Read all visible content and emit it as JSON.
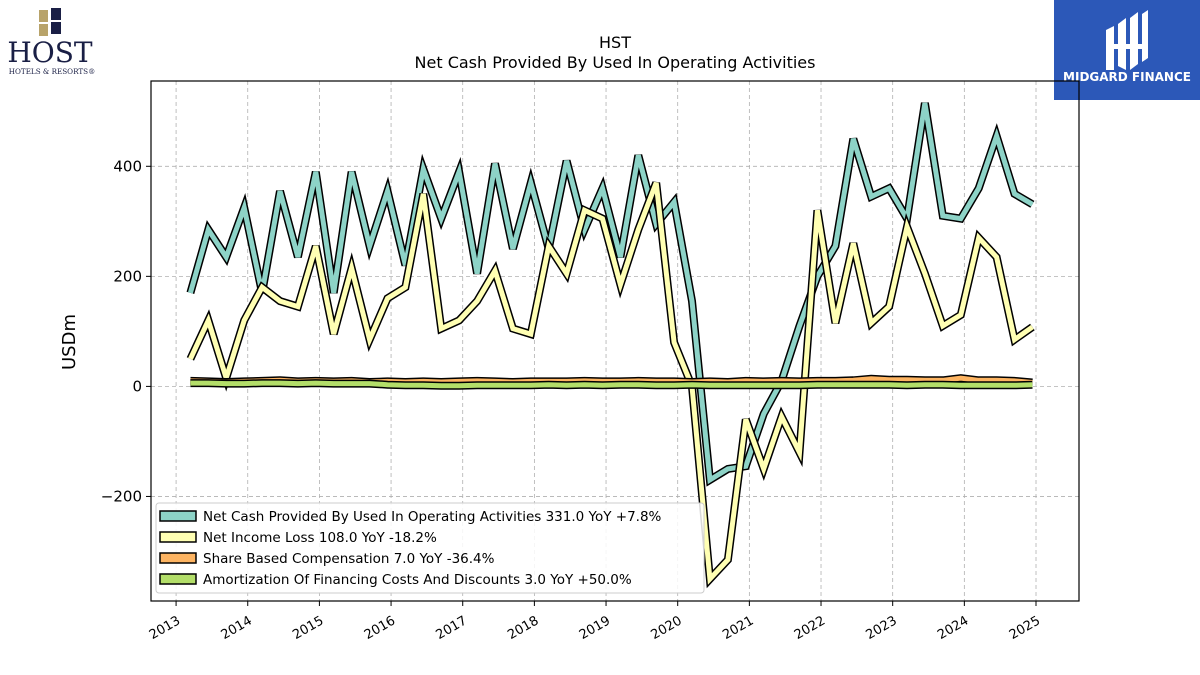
{
  "host_logo": {
    "wordmark": "HOST",
    "tagline": "HOTELS & RESORTS®",
    "color": "#1a1f45",
    "accent": "#b8a36a"
  },
  "brand_logo": {
    "name": "MIDGARD FINANCE",
    "background": "#2c58b8"
  },
  "chart_data": {
    "type": "line",
    "title": "HST",
    "subtitle": "Net Cash Provided By Used In Operating Activities",
    "ylabel": "USDm",
    "xlabel": "",
    "ylim": [
      -390,
      555
    ],
    "xlim": [
      2012.65,
      2025.6
    ],
    "yticks": [
      -200,
      0,
      200,
      400
    ],
    "ytick_labels": [
      "−200",
      "0",
      "200",
      "400"
    ],
    "xticks": [
      2013,
      2014,
      2015,
      2016,
      2017,
      2018,
      2019,
      2020,
      2021,
      2022,
      2023,
      2024,
      2025
    ],
    "grid": true,
    "legend_position": "lower-left",
    "x": [
      2013.2,
      2013.45,
      2013.7,
      2013.95,
      2014.2,
      2014.45,
      2014.7,
      2014.95,
      2015.2,
      2015.45,
      2015.7,
      2015.95,
      2016.2,
      2016.45,
      2016.7,
      2016.95,
      2017.2,
      2017.45,
      2017.7,
      2017.95,
      2018.2,
      2018.45,
      2018.7,
      2018.95,
      2019.2,
      2019.45,
      2019.7,
      2019.95,
      2020.2,
      2020.45,
      2020.7,
      2020.95,
      2021.2,
      2021.45,
      2021.7,
      2021.95,
      2022.2,
      2022.45,
      2022.7,
      2022.95,
      2023.2,
      2023.45,
      2023.7,
      2023.95,
      2024.2,
      2024.45,
      2024.7,
      2024.95
    ],
    "series": [
      {
        "name": "Net Cash Provided By Used In Operating Activities",
        "legend": "Net Cash Provided By Used In Operating Activities  331.0 YoY +7.8%",
        "color": "#8dd3c7",
        "values": [
          170,
          285,
          235,
          325,
          170,
          355,
          235,
          390,
          170,
          390,
          255,
          355,
          220,
          395,
          305,
          390,
          205,
          405,
          250,
          370,
          250,
          410,
          285,
          360,
          235,
          420,
          295,
          335,
          155,
          -170,
          -150,
          -145,
          -50,
          10,
          110,
          200,
          255,
          450,
          345,
          360,
          305,
          515,
          310,
          305,
          360,
          455,
          350,
          331
        ]
      },
      {
        "name": "Net Income Loss",
        "legend": "Net Income Loss  108.0 YoY -18.2%",
        "color": "#ffffb3",
        "values": [
          50,
          120,
          15,
          120,
          180,
          155,
          145,
          255,
          95,
          215,
          85,
          160,
          180,
          350,
          105,
          120,
          155,
          210,
          105,
          95,
          255,
          205,
          320,
          305,
          185,
          285,
          370,
          80,
          0,
          -350,
          -315,
          -60,
          -150,
          -55,
          -120,
          320,
          115,
          260,
          115,
          145,
          290,
          205,
          110,
          130,
          270,
          235,
          85,
          108
        ]
      },
      {
        "name": "Share Based Compensation",
        "legend": "Share Based Compensation  7.0 YoY -36.4%",
        "color": "#fdb462",
        "values": [
          10,
          9,
          8,
          9,
          10,
          11,
          9,
          10,
          9,
          10,
          8,
          9,
          8,
          9,
          8,
          9,
          10,
          9,
          8,
          9,
          9,
          9,
          10,
          9,
          9,
          10,
          9,
          9,
          8,
          9,
          8,
          10,
          9,
          10,
          9,
          10,
          10,
          11,
          14,
          12,
          12,
          11,
          11,
          15,
          11,
          11,
          10,
          7
        ]
      },
      {
        "name": "Amortization Of Financing Costs And Discounts",
        "legend": "Amortization Of Financing Costs And Discounts  3.0 YoY +50.0%",
        "color": "#b3de69",
        "values": [
          6,
          6,
          5,
          5,
          6,
          6,
          5,
          6,
          5,
          5,
          5,
          3,
          2,
          2,
          1,
          1,
          2,
          2,
          2,
          2,
          3,
          2,
          3,
          2,
          3,
          3,
          2,
          2,
          3,
          2,
          2,
          2,
          2,
          2,
          2,
          3,
          3,
          3,
          3,
          3,
          2,
          3,
          3,
          2,
          2,
          2,
          2,
          3
        ]
      }
    ]
  }
}
